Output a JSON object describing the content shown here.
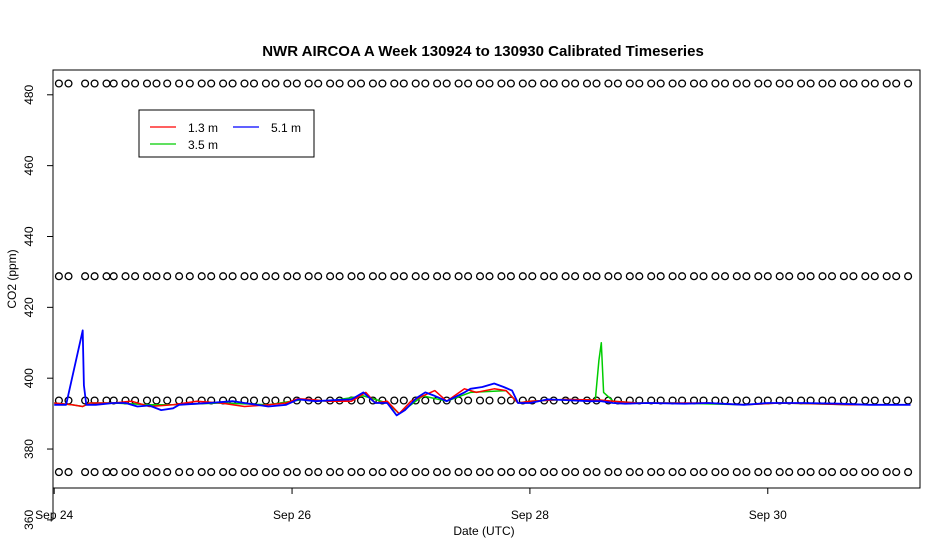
{
  "chart_data": {
    "type": "line",
    "title": "NWR AIRCOA A  Week 130924 to 130930  Calibrated Timeseries",
    "xlabel": "Date (UTC)",
    "ylabel": "CO2 (ppm)",
    "xlim_days": [
      -0.01,
      7.28
    ],
    "ylim": [
      369,
      487
    ],
    "x_ticks": [
      {
        "day": 0,
        "label": "Sep 24"
      },
      {
        "day": 2,
        "label": "Sep 26"
      },
      {
        "day": 4,
        "label": "Sep 28"
      },
      {
        "day": 6,
        "label": "Sep 30"
      }
    ],
    "y_ticks": [
      360,
      380,
      400,
      420,
      440,
      460,
      480
    ],
    "legend": {
      "placement": "top-left",
      "entries": [
        {
          "label": "1.3 m",
          "color": "#ff0000"
        },
        {
          "label": "3.5 m",
          "color": "#00cd00"
        },
        {
          "label": "5.1 m",
          "color": "#0000ff"
        }
      ]
    },
    "series": [
      {
        "name": "1.3 m",
        "color": "#ff0000",
        "points": [
          [
            0.0,
            393
          ],
          [
            0.15,
            392.5
          ],
          [
            0.24,
            392
          ],
          [
            0.3,
            393
          ],
          [
            0.5,
            393
          ],
          [
            0.65,
            393.5
          ],
          [
            0.8,
            392
          ],
          [
            1.0,
            392.5
          ],
          [
            1.2,
            393.5
          ],
          [
            1.4,
            393
          ],
          [
            1.6,
            392
          ],
          [
            1.8,
            392.5
          ],
          [
            1.95,
            393
          ],
          [
            2.05,
            394.2
          ],
          [
            2.15,
            394
          ],
          [
            2.3,
            393.5
          ],
          [
            2.5,
            393.5
          ],
          [
            2.62,
            396
          ],
          [
            2.7,
            393
          ],
          [
            2.8,
            393.5
          ],
          [
            2.9,
            390
          ],
          [
            3.0,
            393.5
          ],
          [
            3.1,
            395
          ],
          [
            3.2,
            396.5
          ],
          [
            3.3,
            393.5
          ],
          [
            3.45,
            397
          ],
          [
            3.55,
            396
          ],
          [
            3.7,
            397
          ],
          [
            3.8,
            396.5
          ],
          [
            3.9,
            393
          ],
          [
            4.0,
            393.5
          ],
          [
            4.3,
            394
          ],
          [
            4.6,
            393.8
          ],
          [
            4.7,
            393.5
          ],
          [
            4.9,
            393
          ],
          [
            5.2,
            393
          ],
          [
            5.5,
            393
          ],
          [
            5.8,
            392.5
          ],
          [
            6.1,
            393
          ],
          [
            6.4,
            392.8
          ],
          [
            6.7,
            392.5
          ],
          [
            7.0,
            392.5
          ],
          [
            7.2,
            392.5
          ]
        ]
      },
      {
        "name": "3.5 m",
        "color": "#00cd00",
        "points": [
          [
            0.0,
            393
          ],
          [
            0.15,
            392.5
          ],
          [
            0.24,
            392
          ],
          [
            0.3,
            393
          ],
          [
            0.5,
            393
          ],
          [
            0.8,
            392.5
          ],
          [
            1.0,
            392.5
          ],
          [
            1.4,
            393
          ],
          [
            1.8,
            392.5
          ],
          [
            2.1,
            394
          ],
          [
            2.3,
            393.5
          ],
          [
            2.6,
            395
          ],
          [
            2.8,
            393
          ],
          [
            2.9,
            390
          ],
          [
            3.1,
            395
          ],
          [
            3.3,
            393.5
          ],
          [
            3.5,
            396
          ],
          [
            3.8,
            396.5
          ],
          [
            3.9,
            393
          ],
          [
            4.0,
            393.5
          ],
          [
            4.3,
            394
          ],
          [
            4.55,
            393.8
          ],
          [
            4.58,
            405
          ],
          [
            4.6,
            410
          ],
          [
            4.62,
            396
          ],
          [
            4.7,
            393.5
          ],
          [
            4.9,
            393
          ],
          [
            5.2,
            393
          ],
          [
            5.8,
            392.5
          ],
          [
            6.1,
            393
          ],
          [
            6.7,
            392.5
          ],
          [
            7.2,
            392.5
          ]
        ]
      },
      {
        "name": "5.1 m",
        "color": "#0000ff",
        "points": [
          [
            0.0,
            392.5
          ],
          [
            0.1,
            392.5
          ],
          [
            0.24,
            413.5
          ],
          [
            0.25,
            398
          ],
          [
            0.27,
            392.5
          ],
          [
            0.35,
            392.5
          ],
          [
            0.5,
            393
          ],
          [
            0.6,
            393
          ],
          [
            0.7,
            392
          ],
          [
            0.8,
            392.3
          ],
          [
            0.9,
            391
          ],
          [
            1.0,
            391.5
          ],
          [
            1.05,
            392.5
          ],
          [
            1.2,
            392.8
          ],
          [
            1.3,
            393
          ],
          [
            1.5,
            393.5
          ],
          [
            1.6,
            393
          ],
          [
            1.8,
            392
          ],
          [
            1.95,
            392.5
          ],
          [
            2.05,
            394
          ],
          [
            2.2,
            393.5
          ],
          [
            2.35,
            393.8
          ],
          [
            2.5,
            394
          ],
          [
            2.6,
            396
          ],
          [
            2.7,
            393
          ],
          [
            2.8,
            393
          ],
          [
            2.88,
            389.5
          ],
          [
            2.95,
            391
          ],
          [
            3.05,
            394.5
          ],
          [
            3.12,
            396
          ],
          [
            3.2,
            395
          ],
          [
            3.3,
            393.5
          ],
          [
            3.45,
            396
          ],
          [
            3.5,
            397
          ],
          [
            3.6,
            397.5
          ],
          [
            3.7,
            398.5
          ],
          [
            3.78,
            397.5
          ],
          [
            3.85,
            396.5
          ],
          [
            3.9,
            393
          ],
          [
            4.0,
            393
          ],
          [
            4.15,
            394
          ],
          [
            4.3,
            393.8
          ],
          [
            4.5,
            393.5
          ],
          [
            4.6,
            393.5
          ],
          [
            4.7,
            393
          ],
          [
            4.8,
            392.8
          ],
          [
            5.0,
            393
          ],
          [
            5.3,
            392.8
          ],
          [
            5.5,
            393
          ],
          [
            5.8,
            392.5
          ],
          [
            6.0,
            393
          ],
          [
            6.3,
            393
          ],
          [
            6.6,
            392.8
          ],
          [
            6.85,
            392.5
          ],
          [
            7.2,
            392.5
          ]
        ]
      },
      {
        "name": "",
        "style": "points",
        "color": "#000000",
        "levels": [
          373.5,
          393.7,
          428.8,
          483.2
        ],
        "x_days": [
          0.04,
          0.12,
          0.26,
          0.34,
          0.44,
          0.5,
          0.6,
          0.68,
          0.78,
          0.86,
          0.95,
          1.05,
          1.14,
          1.24,
          1.32,
          1.42,
          1.5,
          1.6,
          1.68,
          1.78,
          1.86,
          1.96,
          2.04,
          2.14,
          2.22,
          2.32,
          2.4,
          2.5,
          2.58,
          2.68,
          2.76,
          2.86,
          2.94,
          3.04,
          3.12,
          3.22,
          3.3,
          3.4,
          3.48,
          3.58,
          3.66,
          3.76,
          3.84,
          3.94,
          4.02,
          4.12,
          4.2,
          4.3,
          4.38,
          4.48,
          4.56,
          4.66,
          4.74,
          4.84,
          4.92,
          5.02,
          5.1,
          5.2,
          5.28,
          5.38,
          5.46,
          5.56,
          5.64,
          5.74,
          5.82,
          5.92,
          6.0,
          6.1,
          6.18,
          6.28,
          6.36,
          6.46,
          6.54,
          6.64,
          6.72,
          6.82,
          6.9,
          7.0,
          7.08,
          7.18
        ]
      }
    ]
  }
}
